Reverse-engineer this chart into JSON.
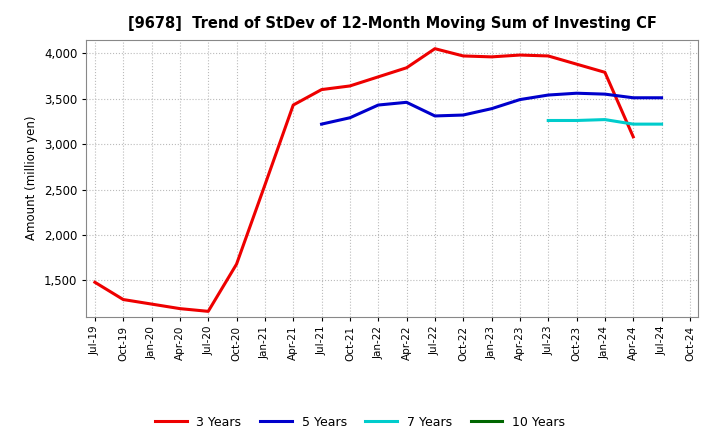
{
  "title": "[9678]  Trend of StDev of 12-Month Moving Sum of Investing CF",
  "ylabel": "Amount (million yen)",
  "background_color": "#ffffff",
  "grid_color": "#bbbbbb",
  "x_labels": [
    "Jul-19",
    "Oct-19",
    "Jan-20",
    "Apr-20",
    "Jul-20",
    "Oct-20",
    "Jan-21",
    "Apr-21",
    "Jul-21",
    "Oct-21",
    "Jan-22",
    "Apr-22",
    "Jul-22",
    "Oct-22",
    "Jan-23",
    "Apr-23",
    "Jul-23",
    "Oct-23",
    "Jan-24",
    "Apr-24",
    "Jul-24",
    "Oct-24"
  ],
  "series": {
    "3 Years": {
      "color": "#ee0000",
      "data_x": [
        0,
        1,
        2,
        3,
        4,
        5,
        6,
        7,
        8,
        9,
        10,
        11,
        12,
        13,
        14,
        15,
        16,
        17,
        18,
        19
      ],
      "data_y": [
        1480,
        1290,
        1240,
        1190,
        1160,
        1680,
        2550,
        3430,
        3600,
        3640,
        3740,
        3840,
        4050,
        3970,
        3960,
        3980,
        3970,
        3880,
        3790,
        3080
      ]
    },
    "5 Years": {
      "color": "#0000cc",
      "data_x": [
        8,
        9,
        10,
        11,
        12,
        13,
        14,
        15,
        16,
        17,
        18,
        19,
        20
      ],
      "data_y": [
        3220,
        3290,
        3430,
        3460,
        3310,
        3320,
        3390,
        3490,
        3540,
        3560,
        3550,
        3510,
        3510
      ]
    },
    "7 Years": {
      "color": "#00cccc",
      "data_x": [
        16,
        17,
        18,
        19,
        20
      ],
      "data_y": [
        3260,
        3260,
        3270,
        3220,
        3220
      ]
    },
    "10 Years": {
      "color": "#006600",
      "data_x": [],
      "data_y": []
    }
  },
  "ylim": [
    1100,
    4150
  ],
  "yticks": [
    1500,
    2000,
    2500,
    3000,
    3500,
    4000
  ],
  "ytick_labels": [
    "1,500",
    "2,000",
    "2,500",
    "3,000",
    "3,500",
    "4,000"
  ]
}
